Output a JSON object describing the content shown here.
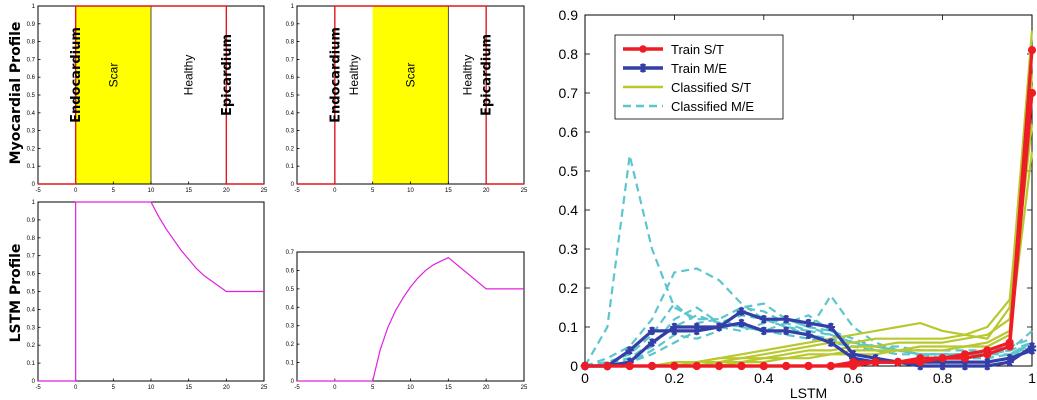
{
  "row_labels": {
    "top": "Myocardial Profile",
    "bottom": "LSTM Profile"
  },
  "chart_data": [
    {
      "id": "myo1",
      "type": "area",
      "xlim": [
        -5,
        25
      ],
      "ylim": [
        0,
        1
      ],
      "xticks": [
        -5,
        0,
        5,
        10,
        15,
        20,
        25
      ],
      "yticks": [
        0,
        0.1,
        0.2,
        0.3,
        0.4,
        0.5,
        0.6,
        0.7,
        0.8,
        0.9,
        1
      ],
      "scar_region": [
        0,
        10
      ],
      "profile_x": [
        -5,
        0,
        0,
        20,
        20,
        25
      ],
      "profile_y": [
        0,
        0,
        1,
        1,
        0,
        0
      ],
      "labels": [
        {
          "text": "Endocardium",
          "x": -0.2,
          "bold": true
        },
        {
          "text": "Scar",
          "x": 5,
          "bold": false
        },
        {
          "text": "Healthy",
          "x": 15,
          "bold": false
        },
        {
          "text": "Epicardium",
          "x": 19.8,
          "bold": true
        }
      ]
    },
    {
      "id": "myo2",
      "type": "area",
      "xlim": [
        -5,
        25
      ],
      "ylim": [
        0,
        1
      ],
      "xticks": [
        -5,
        0,
        5,
        10,
        15,
        20,
        25
      ],
      "yticks": [
        0,
        0.1,
        0.2,
        0.3,
        0.4,
        0.5,
        0.6,
        0.7,
        0.8,
        0.9,
        1
      ],
      "scar_region": [
        5,
        15
      ],
      "profile_x": [
        -5,
        0,
        0,
        20,
        20,
        25
      ],
      "profile_y": [
        0,
        0,
        1,
        1,
        0,
        0
      ],
      "labels": [
        {
          "text": "Endocardium",
          "x": -0.2,
          "bold": true
        },
        {
          "text": "Healthy",
          "x": 2.5,
          "bold": false
        },
        {
          "text": "Scar",
          "x": 10,
          "bold": false
        },
        {
          "text": "Healthy",
          "x": 17.5,
          "bold": false
        },
        {
          "text": "Epicardium",
          "x": 19.8,
          "bold": true
        }
      ]
    },
    {
      "id": "lstm1",
      "type": "line",
      "xlim": [
        -5,
        25
      ],
      "ylim": [
        0,
        1
      ],
      "xticks": [
        -5,
        0,
        5,
        10,
        15,
        20,
        25
      ],
      "yticks": [
        0,
        0.1,
        0.2,
        0.3,
        0.4,
        0.5,
        0.6,
        0.7,
        0.8,
        0.9,
        1
      ],
      "color": "#e020e0",
      "x": [
        -5,
        0,
        0,
        10,
        11,
        12,
        13,
        14,
        15,
        16,
        17,
        18,
        19,
        20,
        25
      ],
      "y": [
        0,
        0,
        1,
        1,
        0.92,
        0.85,
        0.79,
        0.73,
        0.68,
        0.63,
        0.59,
        0.56,
        0.53,
        0.5,
        0.5
      ]
    },
    {
      "id": "lstm2",
      "type": "line",
      "xlim": [
        -5,
        25
      ],
      "ylim": [
        0,
        0.7
      ],
      "xticks": [
        -5,
        0,
        5,
        10,
        15,
        20,
        25
      ],
      "yticks": [
        0,
        0.1,
        0.2,
        0.3,
        0.4,
        0.5,
        0.6,
        0.7
      ],
      "color": "#e020e0",
      "x": [
        -5,
        5,
        6,
        7,
        8,
        9,
        10,
        11,
        12,
        13,
        14,
        15,
        20,
        25
      ],
      "y": [
        0,
        0,
        0.17,
        0.29,
        0.38,
        0.45,
        0.51,
        0.56,
        0.6,
        0.63,
        0.65,
        0.67,
        0.5,
        0.5
      ]
    },
    {
      "id": "lstm_hist",
      "type": "line",
      "xlabel": "LSTM",
      "xlim": [
        0,
        1
      ],
      "ylim": [
        0,
        0.9
      ],
      "xticks": [
        0,
        0.2,
        0.4,
        0.6,
        0.8,
        1
      ],
      "yticks": [
        0,
        0.1,
        0.2,
        0.3,
        0.4,
        0.5,
        0.6,
        0.7,
        0.8,
        0.9
      ],
      "x": [
        0,
        0.05,
        0.1,
        0.15,
        0.2,
        0.25,
        0.3,
        0.35,
        0.4,
        0.45,
        0.5,
        0.55,
        0.6,
        0.65,
        0.7,
        0.75,
        0.8,
        0.85,
        0.9,
        0.95,
        1
      ],
      "legend": [
        {
          "name": "Train S/T",
          "color": "#ee1c25",
          "style": "solid-marker",
          "marker": "circle"
        },
        {
          "name": "Train M/E",
          "color": "#333fa6",
          "style": "solid-marker",
          "marker": "star"
        },
        {
          "name": "Classified S/T",
          "color": "#b8c82e",
          "style": "solid"
        },
        {
          "name": "Classified M/E",
          "color": "#5cc6cc",
          "style": "dashed"
        }
      ],
      "series": [
        {
          "group": "classified_me",
          "color": "#5cc6cc",
          "dashed": true,
          "width": 2.2,
          "values": [
            0,
            0.1,
            0.54,
            0.3,
            0.15,
            0.12,
            0.12,
            0.1,
            0.09,
            0.08,
            0.07,
            0.06,
            0.05,
            0.04,
            0.03,
            0.03,
            0.03,
            0.03,
            0.03,
            0.04,
            0.09
          ]
        },
        {
          "group": "classified_me",
          "color": "#5cc6cc",
          "dashed": true,
          "width": 2.2,
          "values": [
            0,
            0.02,
            0.05,
            0.12,
            0.24,
            0.25,
            0.22,
            0.16,
            0.12,
            0.1,
            0.08,
            0.07,
            0.05,
            0.05,
            0.04,
            0.03,
            0.03,
            0.03,
            0.03,
            0.04,
            0.06
          ]
        },
        {
          "group": "classified_me",
          "color": "#5cc6cc",
          "dashed": true,
          "width": 2.2,
          "values": [
            0,
            0.01,
            0.03,
            0.08,
            0.16,
            0.11,
            0.12,
            0.15,
            0.16,
            0.12,
            0.1,
            0.08,
            0.06,
            0.05,
            0.05,
            0.04,
            0.04,
            0.04,
            0.04,
            0.05,
            0.07
          ]
        },
        {
          "group": "classified_me",
          "color": "#5cc6cc",
          "dashed": true,
          "width": 2.2,
          "values": [
            0,
            0,
            0.02,
            0.06,
            0.1,
            0.13,
            0.11,
            0.13,
            0.12,
            0.1,
            0.09,
            0.18,
            0.1,
            0.06,
            0.04,
            0.03,
            0.03,
            0.03,
            0.03,
            0.04,
            0.05
          ]
        },
        {
          "group": "classified_me",
          "color": "#5cc6cc",
          "dashed": true,
          "width": 2.2,
          "values": [
            0,
            0,
            0.01,
            0.03,
            0.06,
            0.09,
            0.1,
            0.09,
            0.11,
            0.12,
            0.1,
            0.09,
            0.07,
            0.05,
            0.04,
            0.03,
            0.02,
            0.02,
            0.02,
            0.03,
            0.04
          ]
        },
        {
          "group": "classified_me",
          "color": "#5cc6cc",
          "dashed": true,
          "width": 2.2,
          "values": [
            0,
            0.01,
            0.02,
            0.05,
            0.12,
            0.15,
            0.11,
            0.1,
            0.09,
            0.11,
            0.13,
            0.09,
            0.06,
            0.05,
            0.04,
            0.03,
            0.03,
            0.03,
            0.03,
            0.03,
            0.05
          ]
        },
        {
          "group": "classified_me",
          "color": "#5cc6cc",
          "dashed": true,
          "width": 2.2,
          "values": [
            0,
            0,
            0.01,
            0.04,
            0.08,
            0.07,
            0.09,
            0.15,
            0.14,
            0.11,
            0.09,
            0.08,
            0.06,
            0.04,
            0.04,
            0.03,
            0.03,
            0.02,
            0.02,
            0.03,
            0.06
          ]
        },
        {
          "group": "classified_st",
          "color": "#b8c82e",
          "dashed": false,
          "width": 2.2,
          "values": [
            0,
            0,
            0,
            0,
            0,
            0.01,
            0.02,
            0.03,
            0.04,
            0.05,
            0.06,
            0.07,
            0.08,
            0.09,
            0.1,
            0.11,
            0.09,
            0.08,
            0.07,
            0.15,
            0.86
          ]
        },
        {
          "group": "classified_st",
          "color": "#b8c82e",
          "dashed": false,
          "width": 2.2,
          "values": [
            0,
            0,
            0,
            0,
            0.01,
            0.01,
            0.02,
            0.02,
            0.03,
            0.04,
            0.05,
            0.06,
            0.06,
            0.07,
            0.07,
            0.07,
            0.07,
            0.08,
            0.1,
            0.17,
            0.75
          ]
        },
        {
          "group": "classified_st",
          "color": "#b8c82e",
          "dashed": false,
          "width": 2.2,
          "values": [
            0,
            0,
            0,
            0,
            0,
            0,
            0.01,
            0.01,
            0.02,
            0.03,
            0.04,
            0.04,
            0.05,
            0.05,
            0.06,
            0.06,
            0.06,
            0.07,
            0.08,
            0.12,
            0.62
          ]
        },
        {
          "group": "classified_st",
          "color": "#b8c82e",
          "dashed": false,
          "width": 2.2,
          "values": [
            0,
            0,
            0,
            0,
            0,
            0.01,
            0.01,
            0.02,
            0.02,
            0.02,
            0.03,
            0.03,
            0.04,
            0.04,
            0.04,
            0.05,
            0.05,
            0.05,
            0.06,
            0.09,
            0.72
          ]
        },
        {
          "group": "classified_st",
          "color": "#b8c82e",
          "dashed": false,
          "width": 2.2,
          "values": [
            0,
            0,
            0,
            0,
            0,
            0,
            0,
            0.01,
            0.01,
            0.02,
            0.02,
            0.03,
            0.03,
            0.03,
            0.04,
            0.04,
            0.04,
            0.05,
            0.05,
            0.08,
            0.55
          ]
        },
        {
          "group": "train_me",
          "color": "#333fa6",
          "dashed": false,
          "width": 3.2,
          "marker": "star",
          "values": [
            0,
            0,
            0.01,
            0.06,
            0.1,
            0.1,
            0.1,
            0.14,
            0.12,
            0.12,
            0.11,
            0.1,
            0.03,
            0.02,
            0.01,
            0.01,
            0.01,
            0.01,
            0.01,
            0.02,
            0.04
          ]
        },
        {
          "group": "train_me",
          "color": "#333fa6",
          "dashed": false,
          "width": 3.2,
          "marker": "star",
          "values": [
            0,
            0,
            0.04,
            0.09,
            0.09,
            0.09,
            0.1,
            0.11,
            0.09,
            0.09,
            0.08,
            0.06,
            0.02,
            0.01,
            0.01,
            0,
            0,
            0,
            0,
            0.01,
            0.05
          ]
        },
        {
          "group": "train_st",
          "color": "#ee1c25",
          "dashed": false,
          "width": 3.2,
          "marker": "circle",
          "values": [
            0,
            0,
            0,
            0,
            0,
            0,
            0,
            0,
            0,
            0,
            0,
            0,
            0,
            0.01,
            0.01,
            0.02,
            0.02,
            0.03,
            0.04,
            0.06,
            0.81
          ]
        },
        {
          "group": "train_st",
          "color": "#ee1c25",
          "dashed": false,
          "width": 3.2,
          "marker": "circle",
          "values": [
            0,
            0,
            0,
            0,
            0,
            0,
            0,
            0,
            0,
            0,
            0,
            0,
            0.01,
            0.01,
            0.01,
            0.01,
            0.02,
            0.02,
            0.03,
            0.05,
            0.7
          ]
        }
      ]
    }
  ]
}
